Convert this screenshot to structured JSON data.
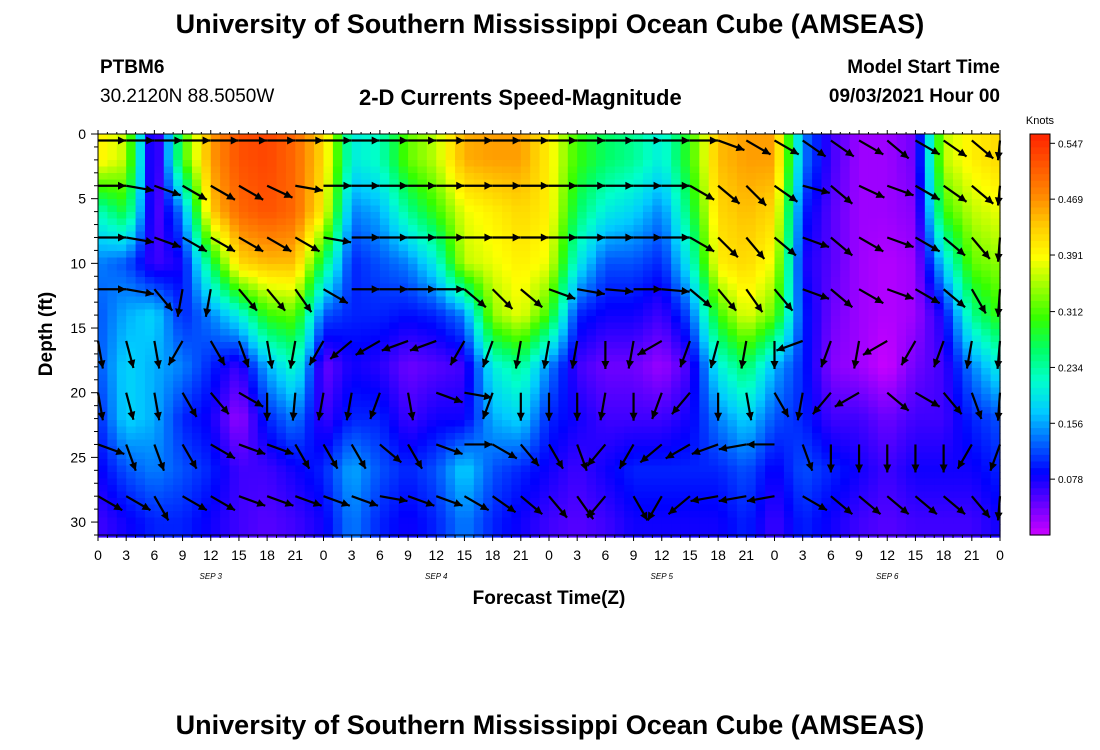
{
  "header": {
    "title_top": "University of Southern Mississippi Ocean Cube (AMSEAS)",
    "title_bottom": "University of Southern Mississippi Ocean Cube (AMSEAS)",
    "station": "PTBM6",
    "coords": "30.2120N  88.5050W",
    "plot_title": "2-D Currents Speed-Magnitude",
    "start_label": "Model Start Time",
    "start_value": "09/03/2021 Hour 00"
  },
  "chart_data": {
    "type": "heatmap",
    "title": "2-D Currents Speed-Magnitude",
    "xlabel": "Forecast Time(Z)",
    "ylabel": "Depth (ft)",
    "x_range_hours": [
      0,
      96
    ],
    "ylim": [
      0,
      31
    ],
    "x_tick_labels": [
      "0",
      "3",
      "6",
      "9",
      "12",
      "15",
      "18",
      "21",
      "0",
      "3",
      "6",
      "9",
      "12",
      "15",
      "18",
      "21",
      "0",
      "3",
      "6",
      "9",
      "12",
      "15",
      "18",
      "21",
      "0",
      "3",
      "6",
      "9",
      "12",
      "15",
      "18",
      "21",
      "0"
    ],
    "y_ticks": [
      0,
      5,
      10,
      15,
      20,
      25,
      30
    ],
    "day_labels": [
      {
        "text": "SEP 3",
        "hour": 12
      },
      {
        "text": "SEP 4",
        "hour": 36
      },
      {
        "text": "SEP 5",
        "hour": 60
      },
      {
        "text": "SEP 6",
        "hour": 84
      }
    ],
    "colorbar": {
      "unit": "Knots",
      "ticks": [
        0.547,
        0.469,
        0.391,
        0.312,
        0.234,
        0.156,
        0.078
      ],
      "min": 0.0,
      "max": 0.56,
      "colors": [
        "#cc00ff",
        "#6600ff",
        "#0000ff",
        "#0066ff",
        "#00ccff",
        "#00ffcc",
        "#00ff66",
        "#33ff00",
        "#99ff00",
        "#ffff00",
        "#ffcc00",
        "#ff8800",
        "#ff5500",
        "#ff2200"
      ]
    },
    "speed_field": {
      "depths_ft": [
        2,
        6,
        10,
        14,
        18,
        22,
        26,
        30
      ],
      "hours": [
        0,
        3,
        6,
        9,
        12,
        15,
        18,
        21,
        24,
        27,
        30,
        33,
        36,
        39,
        42,
        45,
        48,
        51,
        54,
        57,
        60,
        63,
        66,
        69,
        72,
        75,
        78,
        81,
        84,
        87,
        90,
        93,
        96
      ],
      "values": [
        [
          0.4,
          0.36,
          0.02,
          0.3,
          0.46,
          0.52,
          0.53,
          0.5,
          0.42,
          0.2,
          0.22,
          0.32,
          0.36,
          0.45,
          0.46,
          0.46,
          0.4,
          0.3,
          0.26,
          0.24,
          0.2,
          0.3,
          0.44,
          0.46,
          0.46,
          0.14,
          0.06,
          0.02,
          0.02,
          0.04,
          0.36,
          0.4,
          0.42
        ],
        [
          0.22,
          0.28,
          0.04,
          0.14,
          0.43,
          0.5,
          0.52,
          0.5,
          0.4,
          0.14,
          0.16,
          0.24,
          0.3,
          0.38,
          0.4,
          0.42,
          0.4,
          0.26,
          0.2,
          0.18,
          0.14,
          0.26,
          0.42,
          0.44,
          0.42,
          0.1,
          0.05,
          0.02,
          0.02,
          0.03,
          0.3,
          0.36,
          0.38
        ],
        [
          0.14,
          0.12,
          0.06,
          0.08,
          0.26,
          0.42,
          0.44,
          0.44,
          0.26,
          0.1,
          0.12,
          0.14,
          0.2,
          0.36,
          0.38,
          0.4,
          0.38,
          0.2,
          0.12,
          0.12,
          0.1,
          0.2,
          0.4,
          0.42,
          0.38,
          0.08,
          0.05,
          0.02,
          0.01,
          0.02,
          0.18,
          0.32,
          0.34
        ],
        [
          0.12,
          0.16,
          0.18,
          0.1,
          0.14,
          0.2,
          0.3,
          0.32,
          0.12,
          0.1,
          0.1,
          0.09,
          0.1,
          0.14,
          0.34,
          0.38,
          0.3,
          0.1,
          0.08,
          0.08,
          0.06,
          0.12,
          0.3,
          0.38,
          0.32,
          0.1,
          0.04,
          0.02,
          0.01,
          0.02,
          0.08,
          0.24,
          0.3
        ],
        [
          0.12,
          0.18,
          0.16,
          0.14,
          0.1,
          0.06,
          0.16,
          0.22,
          0.04,
          0.08,
          0.07,
          0.04,
          0.05,
          0.06,
          0.2,
          0.24,
          0.14,
          0.06,
          0.04,
          0.04,
          0.02,
          0.06,
          0.2,
          0.26,
          0.16,
          0.1,
          0.03,
          0.02,
          0.0,
          0.04,
          0.06,
          0.14,
          0.2
        ],
        [
          0.1,
          0.18,
          0.16,
          0.1,
          0.08,
          0.02,
          0.1,
          0.14,
          0.06,
          0.1,
          0.1,
          0.06,
          0.08,
          0.08,
          0.16,
          0.18,
          0.1,
          0.08,
          0.06,
          0.06,
          0.06,
          0.08,
          0.14,
          0.18,
          0.12,
          0.1,
          0.06,
          0.06,
          0.04,
          0.06,
          0.06,
          0.1,
          0.12
        ],
        [
          0.08,
          0.12,
          0.14,
          0.12,
          0.1,
          0.06,
          0.06,
          0.08,
          0.1,
          0.16,
          0.12,
          0.1,
          0.12,
          0.18,
          0.12,
          0.1,
          0.08,
          0.06,
          0.08,
          0.1,
          0.1,
          0.1,
          0.1,
          0.12,
          0.08,
          0.12,
          0.1,
          0.08,
          0.06,
          0.08,
          0.08,
          0.08,
          0.1
        ],
        [
          0.06,
          0.08,
          0.1,
          0.1,
          0.08,
          0.06,
          0.05,
          0.06,
          0.08,
          0.14,
          0.1,
          0.08,
          0.1,
          0.14,
          0.1,
          0.08,
          0.06,
          0.05,
          0.06,
          0.08,
          0.08,
          0.08,
          0.08,
          0.1,
          0.06,
          0.1,
          0.08,
          0.06,
          0.05,
          0.06,
          0.06,
          0.06,
          0.08
        ]
      ]
    },
    "vector_field": {
      "depths_ft": [
        0.5,
        4,
        8,
        12,
        16,
        20,
        24,
        28
      ],
      "step_hours": 3,
      "angles_deg": [
        [
          0,
          0,
          0,
          0,
          0,
          0,
          0,
          0,
          0,
          0,
          0,
          0,
          0,
          0,
          0,
          0,
          0,
          0,
          0,
          0,
          0,
          0,
          -20,
          -30,
          -30,
          -35,
          -35,
          -30,
          -40,
          -30,
          -35,
          -40,
          -45
        ],
        [
          0,
          -10,
          -20,
          -30,
          -30,
          -30,
          -25,
          -10,
          0,
          0,
          0,
          0,
          0,
          0,
          0,
          0,
          0,
          0,
          0,
          0,
          0,
          -30,
          -40,
          -45,
          -35,
          -15,
          -40,
          -25,
          -20,
          -30,
          -35,
          -40,
          -45
        ],
        [
          0,
          -10,
          -20,
          -30,
          -30,
          -30,
          -30,
          -30,
          -10,
          0,
          0,
          0,
          0,
          0,
          0,
          0,
          0,
          0,
          0,
          0,
          0,
          -30,
          -45,
          -50,
          -40,
          -20,
          -40,
          -30,
          -20,
          -30,
          -40,
          -50,
          -60
        ],
        [
          0,
          -10,
          -50,
          -100,
          -100,
          -50,
          -50,
          -55,
          -30,
          0,
          0,
          0,
          0,
          -40,
          -45,
          -40,
          -20,
          -10,
          -5,
          0,
          -5,
          -40,
          -50,
          -55,
          -50,
          -20,
          -40,
          -30,
          -20,
          -30,
          -40,
          -60,
          -80
        ],
        [
          -80,
          -75,
          -80,
          -120,
          -60,
          -70,
          -80,
          -100,
          -120,
          -140,
          -150,
          -160,
          -160,
          -120,
          -110,
          -100,
          -100,
          -100,
          -90,
          -100,
          -150,
          -110,
          -105,
          -100,
          -90,
          -160,
          -110,
          -100,
          -150,
          -120,
          -110,
          -100,
          -95
        ],
        [
          -80,
          -75,
          -80,
          -60,
          -50,
          -30,
          -90,
          -95,
          -100,
          -100,
          -110,
          -80,
          -20,
          -10,
          -110,
          -90,
          -90,
          -90,
          -100,
          -90,
          -110,
          -130,
          -90,
          -80,
          -60,
          -100,
          -130,
          -150,
          -40,
          -30,
          -50,
          -70,
          -90
        ],
        [
          -20,
          -70,
          -70,
          -60,
          -30,
          -20,
          -20,
          -60,
          -60,
          -60,
          -40,
          -60,
          -20,
          0,
          -30,
          -50,
          -60,
          -70,
          -130,
          -120,
          -140,
          -150,
          -160,
          -170,
          -180,
          -70,
          -90,
          -90,
          -90,
          -90,
          -90,
          -120,
          -110
        ],
        [
          -30,
          -30,
          -60,
          -30,
          -30,
          -20,
          -20,
          -20,
          -20,
          -20,
          -10,
          -20,
          -20,
          -30,
          -35,
          -40,
          -50,
          -55,
          -130,
          -60,
          -120,
          -140,
          -170,
          -170,
          -170,
          -30,
          -40,
          -40,
          -40,
          -40,
          -40,
          -50,
          -60
        ]
      ]
    }
  }
}
